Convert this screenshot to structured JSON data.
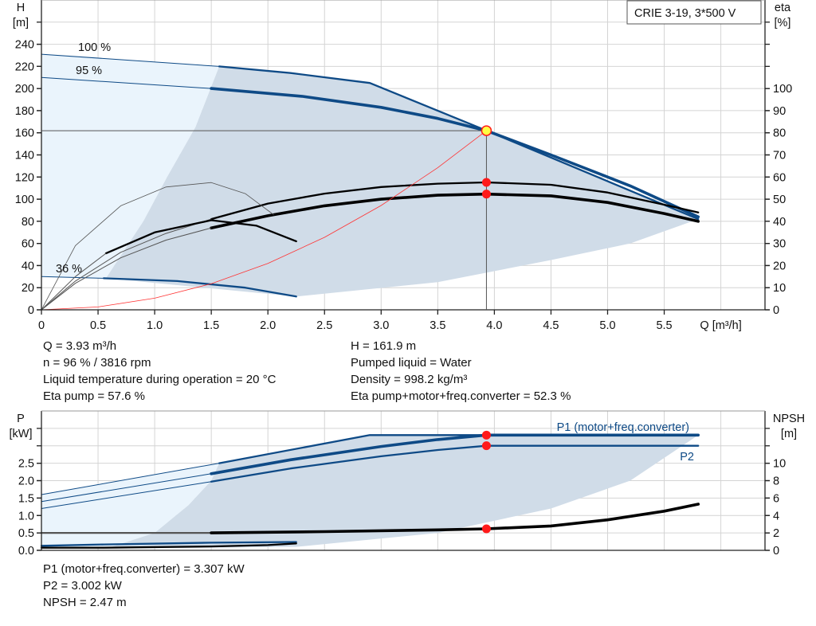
{
  "title_box": "CRIE 3-19, 3*500 V",
  "colors": {
    "blue": "#0e4a86",
    "light_area": "#eaf4fc",
    "dark_area": "#d0dce8",
    "red": "#ff1a1a",
    "op_fill": "#ffff44",
    "system": "#ff3333"
  },
  "chart_data": [
    {
      "type": "line",
      "name": "head-curve",
      "xlabel": "Q [m³/h]",
      "ylabel_left": [
        "H",
        "[m]"
      ],
      "ylabel_right": [
        "eta",
        "[%]"
      ],
      "xlim": [
        0,
        6.39
      ],
      "ylim_left": [
        0,
        280
      ],
      "ylim_right": [
        0,
        140
      ],
      "grid": true,
      "x_ticks": [
        "0",
        "0.5",
        "1.0",
        "1.5",
        "2.0",
        "2.5",
        "3.0",
        "3.5",
        "4.0",
        "4.5",
        "5.0",
        "5.5"
      ],
      "y_ticks_left": [
        "0",
        "20",
        "40",
        "60",
        "80",
        "100",
        "120",
        "140",
        "160",
        "180",
        "200",
        "220",
        "240"
      ],
      "y_ticks_right": [
        "0",
        "10",
        "20",
        "30",
        "40",
        "50",
        "60",
        "70",
        "80",
        "90",
        "100"
      ],
      "annotations": [
        {
          "text": "100 %"
        },
        {
          "text": "95 %"
        },
        {
          "text": "36 %"
        }
      ],
      "areas": [
        {
          "role": "light",
          "points": [
            [
              0,
              231
            ],
            [
              1.57,
              220
            ],
            [
              1.36,
              165
            ],
            [
              1.11,
              120
            ],
            [
              0.9,
              80
            ],
            [
              0.57,
              28.5
            ],
            [
              0,
              30
            ]
          ]
        },
        {
          "role": "dark",
          "points": [
            [
              1.57,
              220
            ],
            [
              2.9,
              205
            ],
            [
              5.8,
              82
            ],
            [
              5.2,
              60
            ],
            [
              4.5,
              45
            ],
            [
              3.5,
              25
            ],
            [
              2.25,
              12
            ],
            [
              0.57,
              28.5
            ],
            [
              0.9,
              80
            ],
            [
              1.11,
              120
            ],
            [
              1.36,
              165
            ]
          ]
        }
      ],
      "series": [
        {
          "id": "head-100",
          "axis": "left",
          "color": "blue",
          "style": "thin",
          "points": [
            [
              0,
              231
            ],
            [
              1.57,
              220
            ]
          ]
        },
        {
          "id": "head-100-range",
          "axis": "left",
          "color": "blue",
          "style": "medium",
          "points": [
            [
              1.57,
              220
            ],
            [
              2.2,
              214
            ],
            [
              2.9,
              205
            ],
            [
              3.93,
              162
            ],
            [
              5.8,
              82
            ]
          ]
        },
        {
          "id": "head-95",
          "axis": "left",
          "color": "blue",
          "style": "thin",
          "points": [
            [
              0,
              210
            ],
            [
              1.5,
              200
            ]
          ]
        },
        {
          "id": "head-96-duty",
          "axis": "left",
          "color": "blue",
          "style": "thick",
          "points": [
            [
              1.5,
              200
            ],
            [
              2.3,
              193
            ],
            [
              3.0,
              183
            ],
            [
              3.5,
              173
            ],
            [
              3.93,
              161.9
            ],
            [
              4.5,
              140
            ],
            [
              5.2,
              112
            ],
            [
              5.8,
              84
            ]
          ]
        },
        {
          "id": "head-36",
          "axis": "left",
          "color": "blue",
          "style": "thin",
          "points": [
            [
              0,
              30
            ],
            [
              0.55,
              28.5
            ]
          ]
        },
        {
          "id": "head-36-range",
          "axis": "left",
          "color": "blue",
          "style": "medium",
          "points": [
            [
              0.55,
              28.5
            ],
            [
              1.2,
              26
            ],
            [
              1.8,
              20
            ],
            [
              2.25,
              12
            ]
          ]
        },
        {
          "id": "eta-pump",
          "axis": "right",
          "color": "black",
          "style": "medium",
          "points": [
            [
              1.5,
              41
            ],
            [
              2.0,
              48
            ],
            [
              2.5,
              52.5
            ],
            [
              3.0,
              55.5
            ],
            [
              3.5,
              57
            ],
            [
              3.93,
              57.6
            ],
            [
              4.5,
              56.5
            ],
            [
              5.0,
              53
            ],
            [
              5.5,
              47.5
            ],
            [
              5.8,
              44
            ]
          ]
        },
        {
          "id": "eta-total",
          "axis": "right",
          "color": "black",
          "style": "thick",
          "points": [
            [
              1.5,
              37
            ],
            [
              2.0,
              42.5
            ],
            [
              2.5,
              47
            ],
            [
              3.0,
              50
            ],
            [
              3.5,
              51.8
            ],
            [
              3.93,
              52.3
            ],
            [
              4.5,
              51.5
            ],
            [
              5.0,
              48.5
            ],
            [
              5.5,
              43.5
            ],
            [
              5.8,
              40
            ]
          ]
        },
        {
          "id": "eta-pump-low",
          "axis": "right",
          "color": "gray",
          "style": "thin",
          "points": [
            [
              0,
              0
            ],
            [
              0.3,
              13
            ],
            [
              0.7,
              26
            ],
            [
              1.1,
              34.5
            ],
            [
              1.5,
              41
            ]
          ]
        },
        {
          "id": "eta-total-low",
          "axis": "right",
          "color": "gray",
          "style": "thin",
          "points": [
            [
              0,
              0
            ],
            [
              0.3,
              12
            ],
            [
              0.7,
              23.5
            ],
            [
              1.1,
              31.5
            ],
            [
              1.5,
              37
            ]
          ]
        },
        {
          "id": "eta-36",
          "axis": "right",
          "color": "black",
          "style": "medium",
          "points": [
            [
              0.57,
              25.5
            ],
            [
              1.0,
              35
            ],
            [
              1.5,
              40.5
            ],
            [
              1.9,
              38
            ],
            [
              2.25,
              31
            ]
          ]
        },
        {
          "id": "eta-36-low",
          "axis": "right",
          "color": "gray",
          "style": "thin",
          "points": [
            [
              0,
              0
            ],
            [
              0.3,
              15
            ],
            [
              0.57,
              25.5
            ]
          ]
        },
        {
          "id": "eta-max-arc",
          "axis": "right",
          "color": "gray",
          "style": "hair",
          "points": [
            [
              0,
              0
            ],
            [
              0.3,
              29
            ],
            [
              0.7,
              47
            ],
            [
              1.1,
              55.5
            ],
            [
              1.5,
              57.5
            ],
            [
              1.8,
              52.5
            ],
            [
              2.05,
              43
            ]
          ]
        },
        {
          "id": "system-curve",
          "axis": "left",
          "color": "system",
          "style": "hair",
          "points": [
            [
              0,
              0
            ],
            [
              0.5,
              2.6
            ],
            [
              1.0,
              10.5
            ],
            [
              1.5,
              23.6
            ],
            [
              2.0,
              41.9
            ],
            [
              2.5,
              65.5
            ],
            [
              3.0,
              94.3
            ],
            [
              3.5,
              128.4
            ],
            [
              3.93,
              161.9
            ]
          ]
        }
      ],
      "operating_point": {
        "q": 3.93,
        "h": 161.9,
        "eta_pump": 57.6,
        "eta_total": 52.3
      }
    },
    {
      "type": "line",
      "name": "power-npsh-curve",
      "ylabel_left": [
        "P",
        "[kW]"
      ],
      "ylabel_right": [
        "NPSH",
        "[m]"
      ],
      "xlim": [
        0,
        6.39
      ],
      "ylim_left": [
        0,
        4.0
      ],
      "ylim_right": [
        0,
        16
      ],
      "grid": true,
      "y_ticks_left": [
        "0.0",
        "0.5",
        "1.0",
        "1.5",
        "2.0",
        "2.5"
      ],
      "y_ticks_right": [
        "0",
        "2",
        "4",
        "6",
        "8",
        "10"
      ],
      "legend": [
        {
          "text": "P1 (motor+freq.converter)"
        },
        {
          "text": "P2"
        }
      ],
      "areas": [
        {
          "role": "light",
          "points": [
            [
              0,
              1.6
            ],
            [
              1.57,
              2.5
            ],
            [
              1.5,
              2.0
            ],
            [
              1.3,
              1.3
            ],
            [
              1.0,
              0.5
            ],
            [
              0.57,
              0.05
            ],
            [
              0,
              0.1
            ]
          ]
        },
        {
          "role": "dark",
          "points": [
            [
              1.57,
              2.5
            ],
            [
              2.9,
              3.307
            ],
            [
              5.8,
              3.307
            ],
            [
              5.2,
              2.0
            ],
            [
              4.5,
              1.2
            ],
            [
              3.5,
              0.5
            ],
            [
              2.25,
              0.1
            ],
            [
              0.57,
              0.05
            ],
            [
              1.0,
              0.5
            ],
            [
              1.3,
              1.3
            ],
            [
              1.5,
              2.0
            ]
          ]
        }
      ],
      "series": [
        {
          "id": "p1-100",
          "axis": "left",
          "color": "blue",
          "style": "thin",
          "points": [
            [
              0,
              1.6
            ],
            [
              1.57,
              2.5
            ]
          ]
        },
        {
          "id": "p1-100-range",
          "axis": "left",
          "color": "blue",
          "style": "medium",
          "points": [
            [
              1.57,
              2.5
            ],
            [
              2.9,
              3.307
            ],
            [
              5.8,
              3.307
            ]
          ]
        },
        {
          "id": "p1-duty-low",
          "axis": "left",
          "color": "blue",
          "style": "thin",
          "points": [
            [
              0,
              1.4
            ],
            [
              1.5,
              2.2
            ]
          ]
        },
        {
          "id": "p1-duty",
          "axis": "left",
          "color": "blue",
          "style": "thick",
          "points": [
            [
              1.5,
              2.2
            ],
            [
              2.2,
              2.6
            ],
            [
              3.0,
              2.98
            ],
            [
              3.5,
              3.18
            ],
            [
              3.93,
              3.307
            ],
            [
              5.8,
              3.307
            ]
          ]
        },
        {
          "id": "p2-low",
          "axis": "left",
          "color": "blue",
          "style": "thin",
          "points": [
            [
              0,
              1.2
            ],
            [
              1.5,
              1.97
            ]
          ]
        },
        {
          "id": "p2-duty",
          "axis": "left",
          "color": "blue",
          "style": "medium",
          "points": [
            [
              1.5,
              1.97
            ],
            [
              2.2,
              2.35
            ],
            [
              3.0,
              2.7
            ],
            [
              3.5,
              2.88
            ],
            [
              3.93,
              3.002
            ],
            [
              5.8,
              3.002
            ]
          ]
        },
        {
          "id": "p-36",
          "axis": "left",
          "color": "blue",
          "style": "medium",
          "points": [
            [
              0,
              0.13
            ],
            [
              0.55,
              0.17
            ],
            [
              1.5,
              0.22
            ],
            [
              2.25,
              0.24
            ]
          ]
        },
        {
          "id": "npsh-low",
          "axis": "right",
          "color": "gray",
          "style": "medium",
          "points": [
            [
              0,
              2.0
            ],
            [
              1.5,
              2.0
            ]
          ]
        },
        {
          "id": "npsh-duty",
          "axis": "right",
          "color": "black",
          "style": "thick",
          "points": [
            [
              1.5,
              2.0
            ],
            [
              2.5,
              2.15
            ],
            [
              3.5,
              2.35
            ],
            [
              3.93,
              2.47
            ],
            [
              4.5,
              2.8
            ],
            [
              5.0,
              3.5
            ],
            [
              5.5,
              4.5
            ],
            [
              5.8,
              5.3
            ]
          ]
        },
        {
          "id": "npsh-36",
          "axis": "right",
          "color": "black",
          "style": "medium",
          "points": [
            [
              0,
              0.3
            ],
            [
              0.55,
              0.3
            ],
            [
              1.5,
              0.45
            ],
            [
              2.0,
              0.6
            ],
            [
              2.25,
              0.8
            ]
          ]
        }
      ],
      "operating_point": {
        "q": 3.93,
        "p1": 3.307,
        "p2": 3.002,
        "npsh": 2.47
      }
    }
  ],
  "info_top_left": [
    "Q = 3.93 m³/h",
    "n = 96 % / 3816 rpm",
    "Liquid temperature during operation = 20 °C",
    "Eta pump = 57.6 %"
  ],
  "info_top_right": [
    "H = 161.9 m",
    "Pumped liquid = Water",
    "Density = 998.2 kg/m³",
    "Eta pump+motor+freq.converter = 52.3 %"
  ],
  "info_bottom": [
    "P1 (motor+freq.converter) = 3.307 kW",
    "P2 = 3.002 kW",
    "NPSH = 2.47 m"
  ]
}
